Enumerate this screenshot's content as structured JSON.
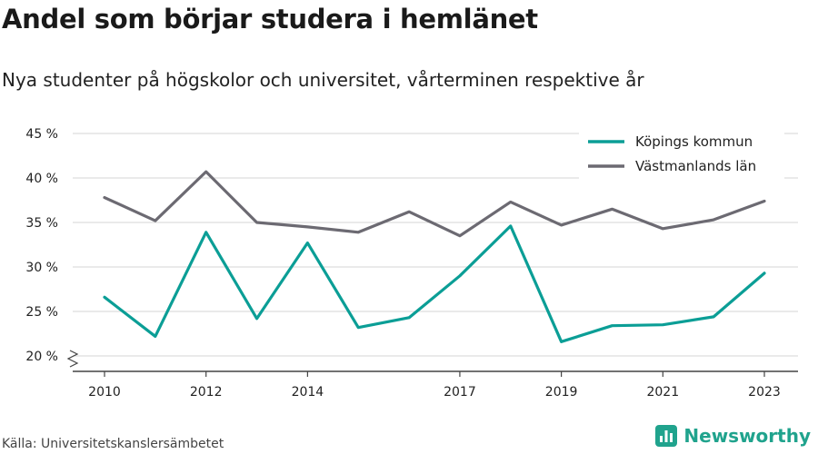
{
  "title": "Andel som börjar studera i hemlänet",
  "subtitle": "Nya studenter på högskolor och universitet, vårterminen respektive år",
  "source": "Källa: Universitetskanslersämbetet",
  "brand": {
    "name": "Newsworthy",
    "icon": "bar-chart-logo-icon",
    "color": "#20a38d"
  },
  "chart_data": {
    "type": "line",
    "title": "Andel som börjar studera i hemlänet",
    "subtitle": "Nya studenter på högskolor och universitet, vårterminen respektive år",
    "x": [
      2010,
      2011,
      2012,
      2013,
      2014,
      2015,
      2016,
      2017,
      2018,
      2019,
      2020,
      2021,
      2022,
      2023
    ],
    "x_tick_labels": [
      "2010",
      "2012",
      "2014",
      "2017",
      "2019",
      "2021",
      "2023"
    ],
    "x_ticks": [
      2010,
      2012,
      2014,
      2017,
      2019,
      2021,
      2023
    ],
    "y_tick_labels": [
      "20 %",
      "25 %",
      "30 %",
      "35 %",
      "40 %",
      "45 %"
    ],
    "y_ticks": [
      20,
      25,
      30,
      35,
      40,
      45
    ],
    "ylim": [
      20,
      45
    ],
    "y_axis_break": true,
    "grid": true,
    "legend_position": "top-right",
    "series": [
      {
        "name": "Köpings kommun",
        "color": "#0b9e96",
        "values": [
          26.6,
          22.2,
          33.9,
          24.2,
          32.7,
          23.2,
          24.3,
          29.0,
          34.6,
          21.6,
          23.4,
          23.5,
          24.4,
          29.3
        ]
      },
      {
        "name": "Västmanlands län",
        "color": "#6c6a72",
        "values": [
          37.8,
          35.2,
          40.7,
          35.0,
          34.5,
          33.9,
          36.2,
          33.5,
          37.3,
          34.7,
          36.5,
          34.3,
          35.3,
          37.4
        ]
      }
    ]
  }
}
